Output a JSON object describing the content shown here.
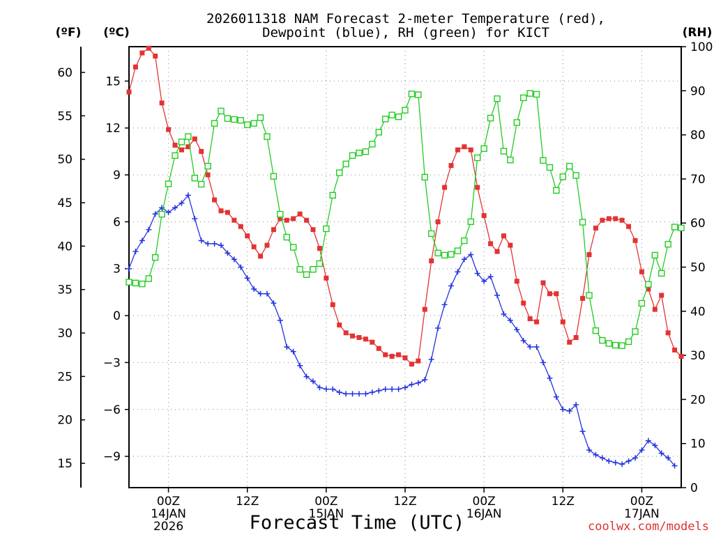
{
  "colors": {
    "temperature": "#e33333",
    "dewpoint": "#2233dd",
    "rh": "#22cc22",
    "credit": "#e03030",
    "grid": "#9a9a9a"
  },
  "units": {
    "fahrenheit": "(ºF)",
    "celsius": "(ºC)",
    "rh": "(RH)"
  },
  "credit": "coolwx.com/models",
  "chart_data": {
    "type": "line",
    "title": "2026011318 NAM Forecast 2-meter Temperature (red),",
    "subtitle": "Dewpoint (blue), RH (green) for KICT",
    "xlabel": "Forecast Time (UTC)",
    "x_units": "forecast hour",
    "xlim": [
      0,
      84
    ],
    "x_ticks": [
      {
        "x": 6,
        "lines": [
          "00Z",
          "14JAN",
          "2026"
        ]
      },
      {
        "x": 18,
        "lines": [
          "12Z"
        ]
      },
      {
        "x": 30,
        "lines": [
          "00Z",
          "15JAN"
        ]
      },
      {
        "x": 42,
        "lines": [
          "12Z"
        ]
      },
      {
        "x": 54,
        "lines": [
          "00Z",
          "16JAN"
        ]
      },
      {
        "x": 66,
        "lines": [
          "12Z"
        ]
      },
      {
        "x": 78,
        "lines": [
          "00Z",
          "17JAN"
        ]
      }
    ],
    "ylim_c": [
      -11,
      17.2
    ],
    "yticks_c": [
      -9,
      -6,
      -3,
      0,
      3,
      6,
      9,
      12,
      15
    ],
    "yticks_c_labels": [
      "−9",
      "−6",
      "−3",
      "0",
      "3",
      "6",
      "9",
      "12",
      "15"
    ],
    "yticks_f": [
      15,
      20,
      25,
      30,
      35,
      40,
      45,
      50,
      55,
      60
    ],
    "ylim_rh": [
      0,
      100
    ],
    "yticks_rh": [
      0,
      10,
      20,
      30,
      40,
      50,
      60,
      70,
      80,
      90,
      100
    ],
    "series": [
      {
        "name": "Temperature",
        "units": "°C",
        "marker": "filled-square",
        "values": [
          14.3,
          15.9,
          16.8,
          17.1,
          16.6,
          13.6,
          11.9,
          10.9,
          10.6,
          10.8,
          11.3,
          10.5,
          9.0,
          7.4,
          6.7,
          6.6,
          6.1,
          5.7,
          5.1,
          4.4,
          3.8,
          4.5,
          5.5,
          6.2,
          6.1,
          6.2,
          6.5,
          6.1,
          5.5,
          4.3,
          2.4,
          0.7,
          -0.6,
          -1.1,
          -1.3,
          -1.4,
          -1.5,
          -1.7,
          -2.1,
          -2.5,
          -2.6,
          -2.5,
          -2.7,
          -3.1,
          -2.9,
          0.4,
          3.5,
          6.0,
          8.2,
          9.6,
          10.6,
          10.8,
          10.6,
          8.2,
          6.4,
          4.6,
          4.1,
          5.1,
          4.5,
          2.2,
          0.8,
          -0.2,
          -0.4,
          2.1,
          1.4,
          1.4,
          -0.4,
          -1.7,
          -1.4,
          1.1,
          3.9,
          5.6,
          6.1,
          6.2,
          6.2,
          6.1,
          5.7,
          4.8,
          2.8,
          1.7,
          0.4,
          1.3,
          -1.1,
          -2.2,
          -2.6
        ]
      },
      {
        "name": "Dewpoint",
        "units": "°C",
        "marker": "plus",
        "values": [
          3.0,
          4.1,
          4.8,
          5.5,
          6.5,
          6.9,
          6.6,
          6.9,
          7.2,
          7.7,
          6.2,
          4.8,
          4.6,
          4.6,
          4.5,
          4.0,
          3.6,
          3.1,
          2.4,
          1.7,
          1.4,
          1.4,
          0.8,
          -0.3,
          -2.0,
          -2.3,
          -3.2,
          -3.9,
          -4.2,
          -4.6,
          -4.7,
          -4.7,
          -4.9,
          -5.0,
          -5.0,
          -5.0,
          -5.0,
          -4.9,
          -4.8,
          -4.7,
          -4.7,
          -4.7,
          -4.6,
          -4.4,
          -4.3,
          -4.1,
          -2.8,
          -0.8,
          0.7,
          1.9,
          2.8,
          3.6,
          3.9,
          2.7,
          2.2,
          2.5,
          1.3,
          0.1,
          -0.3,
          -0.9,
          -1.6,
          -2.0,
          -2.0,
          -3.0,
          -4.0,
          -5.2,
          -6.0,
          -6.1,
          -5.7,
          -7.4,
          -8.6,
          -8.9,
          -9.1,
          -9.3,
          -9.4,
          -9.5,
          -9.3,
          -9.1,
          -8.6,
          -8.0,
          -8.3,
          -8.8,
          -9.1,
          -9.6
        ]
      },
      {
        "name": "RH",
        "units": "%",
        "marker": "open-square",
        "values": [
          46.6,
          46.4,
          46.2,
          47.4,
          52.2,
          62.0,
          68.9,
          75.3,
          78.4,
          79.6,
          70.2,
          68.8,
          72.9,
          82.6,
          85.4,
          83.7,
          83.5,
          83.3,
          82.3,
          82.6,
          83.9,
          79.6,
          70.6,
          62.0,
          56.8,
          54.5,
          49.5,
          48.3,
          49.5,
          50.8,
          58.7,
          66.3,
          71.4,
          73.4,
          75.3,
          75.9,
          76.2,
          77.9,
          80.6,
          83.6,
          84.5,
          84.1,
          85.6,
          89.3,
          89.1,
          70.4,
          57.6,
          53.2,
          52.7,
          52.9,
          53.7,
          56.0,
          60.3,
          74.8,
          76.9,
          83.8,
          88.2,
          76.3,
          74.3,
          82.8,
          88.4,
          89.4,
          89.2,
          74.2,
          72.6,
          67.4,
          70.5,
          72.9,
          70.8,
          60.2,
          43.6,
          35.6,
          33.4,
          32.7,
          32.3,
          32.2,
          33.1,
          35.4,
          41.8,
          46.1,
          52.7,
          48.6,
          55.2,
          59.1,
          58.9
        ]
      }
    ]
  }
}
